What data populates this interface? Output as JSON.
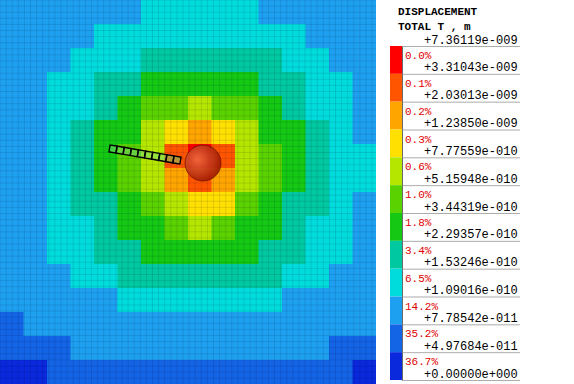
{
  "chart_data": {
    "type": "heatmap",
    "cells": [
      [
        9.5e-11,
        9.5e-11,
        9.5e-11,
        9.5e-11,
        9.5e-11,
        9.5e-11,
        1.3e-10,
        1.3e-10,
        1.3e-10,
        1.3e-10,
        1.3e-10,
        9.5e-11,
        9.5e-11,
        9.5e-11,
        9.5e-11,
        9.5e-11
      ],
      [
        9.5e-11,
        9.5e-11,
        9.5e-11,
        9.5e-11,
        1.3e-10,
        1.3e-10,
        1.3e-10,
        1.3e-10,
        1.3e-10,
        1.3e-10,
        1.3e-10,
        1.3e-10,
        1.3e-10,
        9.5e-11,
        9.5e-11,
        9.5e-11
      ],
      [
        9.5e-11,
        9.5e-11,
        9.5e-11,
        1.3e-10,
        1.3e-10,
        1.3e-10,
        1.9e-10,
        1.9e-10,
        1.9e-10,
        1.9e-10,
        1.9e-10,
        1.9e-10,
        1.3e-10,
        1.3e-10,
        9.5e-11,
        9.5e-11
      ],
      [
        9.5e-11,
        9.5e-11,
        1.3e-10,
        1.3e-10,
        1.9e-10,
        1.9e-10,
        2.8e-10,
        2.8e-10,
        2.8e-10,
        2.8e-10,
        2.8e-10,
        1.9e-10,
        1.9e-10,
        1.3e-10,
        1.3e-10,
        9.5e-11
      ],
      [
        9.5e-11,
        9.5e-11,
        1.3e-10,
        1.3e-10,
        1.9e-10,
        2.8e-10,
        4.3e-10,
        4.3e-10,
        6.4e-10,
        4.3e-10,
        4.3e-10,
        2.8e-10,
        1.9e-10,
        1.3e-10,
        1.3e-10,
        9.5e-11
      ],
      [
        9.5e-11,
        9.5e-11,
        1.3e-10,
        1.9e-10,
        2.8e-10,
        2.8e-10,
        6.4e-10,
        1e-09,
        1.6e-09,
        1e-09,
        6.4e-10,
        2.8e-10,
        2.8e-10,
        1.9e-10,
        1.3e-10,
        9.5e-11
      ],
      [
        9.5e-11,
        9.5e-11,
        1.3e-10,
        1.9e-10,
        2.8e-10,
        4.3e-10,
        6.4e-10,
        2.6e-09,
        5e-09,
        2.6e-09,
        6.4e-10,
        4.3e-10,
        2.8e-10,
        1.9e-10,
        1.3e-10,
        1.3e-10
      ],
      [
        9.5e-11,
        9.5e-11,
        1.3e-10,
        1.9e-10,
        2.8e-10,
        4.3e-10,
        6.4e-10,
        1.6e-09,
        2.6e-09,
        1.6e-09,
        6.4e-10,
        4.3e-10,
        2.8e-10,
        1.9e-10,
        1.3e-10,
        1.3e-10
      ],
      [
        9.5e-11,
        9.5e-11,
        1.3e-10,
        1.9e-10,
        1.9e-10,
        2.8e-10,
        4.3e-10,
        6.4e-10,
        1e-09,
        1e-09,
        4.3e-10,
        2.8e-10,
        1.9e-10,
        1.9e-10,
        1.3e-10,
        9.5e-11
      ],
      [
        9.5e-11,
        9.5e-11,
        1.3e-10,
        1.3e-10,
        1.9e-10,
        2.8e-10,
        2.8e-10,
        4.3e-10,
        6.4e-10,
        4.3e-10,
        2.8e-10,
        2.8e-10,
        1.9e-10,
        1.3e-10,
        1.3e-10,
        9.5e-11
      ],
      [
        9.5e-11,
        9.5e-11,
        1.3e-10,
        1.3e-10,
        1.9e-10,
        1.9e-10,
        2.8e-10,
        2.8e-10,
        2.8e-10,
        2.8e-10,
        2.8e-10,
        1.9e-10,
        1.9e-10,
        1.3e-10,
        1.3e-10,
        9.5e-11
      ],
      [
        9.5e-11,
        9.5e-11,
        9.5e-11,
        1.3e-10,
        1.3e-10,
        1.9e-10,
        1.9e-10,
        1.9e-10,
        1.9e-10,
        1.9e-10,
        1.9e-10,
        1.9e-10,
        1.3e-10,
        1.3e-10,
        9.5e-11,
        9.5e-11
      ],
      [
        9.5e-11,
        9.5e-11,
        9.5e-11,
        9.5e-11,
        9.5e-11,
        1.3e-10,
        1.3e-10,
        1.3e-10,
        1.3e-10,
        1.3e-10,
        1.3e-10,
        1.3e-10,
        9.5e-11,
        9.5e-11,
        9.5e-11,
        9.5e-11
      ],
      [
        6.5e-11,
        9.5e-11,
        9.5e-11,
        9.5e-11,
        9.5e-11,
        9.5e-11,
        9.5e-11,
        9.5e-11,
        9.5e-11,
        9.5e-11,
        9.5e-11,
        9.5e-11,
        9.5e-11,
        9.5e-11,
        9.5e-11,
        9.5e-11
      ],
      [
        6.5e-11,
        6.5e-11,
        6.5e-11,
        9.5e-11,
        9.5e-11,
        9.5e-11,
        9.5e-11,
        9.5e-11,
        9.5e-11,
        9.5e-11,
        9.5e-11,
        9.5e-11,
        9.5e-11,
        9.5e-11,
        6.5e-11,
        6.5e-11
      ],
      [
        3e-11,
        3e-11,
        6.5e-11,
        6.5e-11,
        6.5e-11,
        6.5e-11,
        6.5e-11,
        6.5e-11,
        6.5e-11,
        6.5e-11,
        6.5e-11,
        6.5e-11,
        6.5e-11,
        6.5e-11,
        6.5e-11,
        3e-11
      ]
    ],
    "colorbar": {
      "title": "DISPLACEMENT",
      "label": "TOTAL T , m",
      "range": [
        0,
        7.36119e-09
      ],
      "ticks": [
        {
          "value": 7.36119e-09,
          "label": "+7.36119e-009"
        },
        {
          "value": 3.31043e-09,
          "label": "+3.31043e-009"
        },
        {
          "value": 2.03013e-09,
          "label": "+2.03013e-009"
        },
        {
          "value": 1.2385e-09,
          "label": "+1.23850e-009"
        },
        {
          "value": 7.77559e-10,
          "label": "+7.77559e-010"
        },
        {
          "value": 5.15948e-10,
          "label": "+5.15948e-010"
        },
        {
          "value": 3.44319e-10,
          "label": "+3.44319e-010"
        },
        {
          "value": 2.29357e-10,
          "label": "+2.29357e-010"
        },
        {
          "value": 1.53246e-10,
          "label": "+1.53246e-010"
        },
        {
          "value": 1.09016e-10,
          "label": "+1.09016e-010"
        },
        {
          "value": 7.78542e-11,
          "label": "+7.78542e-011"
        },
        {
          "value": 4.97684e-11,
          "label": "+4.97684e-011"
        },
        {
          "value": 0,
          "label": "+0.00000e+000"
        }
      ],
      "colors": [
        "#ff0000",
        "#ff5500",
        "#ffa500",
        "#ffe000",
        "#b4e600",
        "#5ad200",
        "#14c814",
        "#00c8a0",
        "#00dcdc",
        "#1ea0f0",
        "#1464e6",
        "#0a28dc"
      ],
      "band_percents": [
        {
          "value": 0.0,
          "label": "0.0%"
        },
        {
          "value": 0.1,
          "label": "0.1%"
        },
        {
          "value": 0.2,
          "label": "0.2%"
        },
        {
          "value": 0.3,
          "label": "0.3%"
        },
        {
          "value": 0.6,
          "label": "0.6%"
        },
        {
          "value": 1.0,
          "label": "1.0%"
        },
        {
          "value": 1.8,
          "label": "1.8%"
        },
        {
          "value": 3.4,
          "label": "3.4%"
        },
        {
          "value": 6.5,
          "label": "6.5%"
        },
        {
          "value": 14.2,
          "label": "14.2%"
        },
        {
          "value": 35.2,
          "label": "35.2%"
        },
        {
          "value": 36.7,
          "label": "36.7%"
        }
      ]
    }
  }
}
